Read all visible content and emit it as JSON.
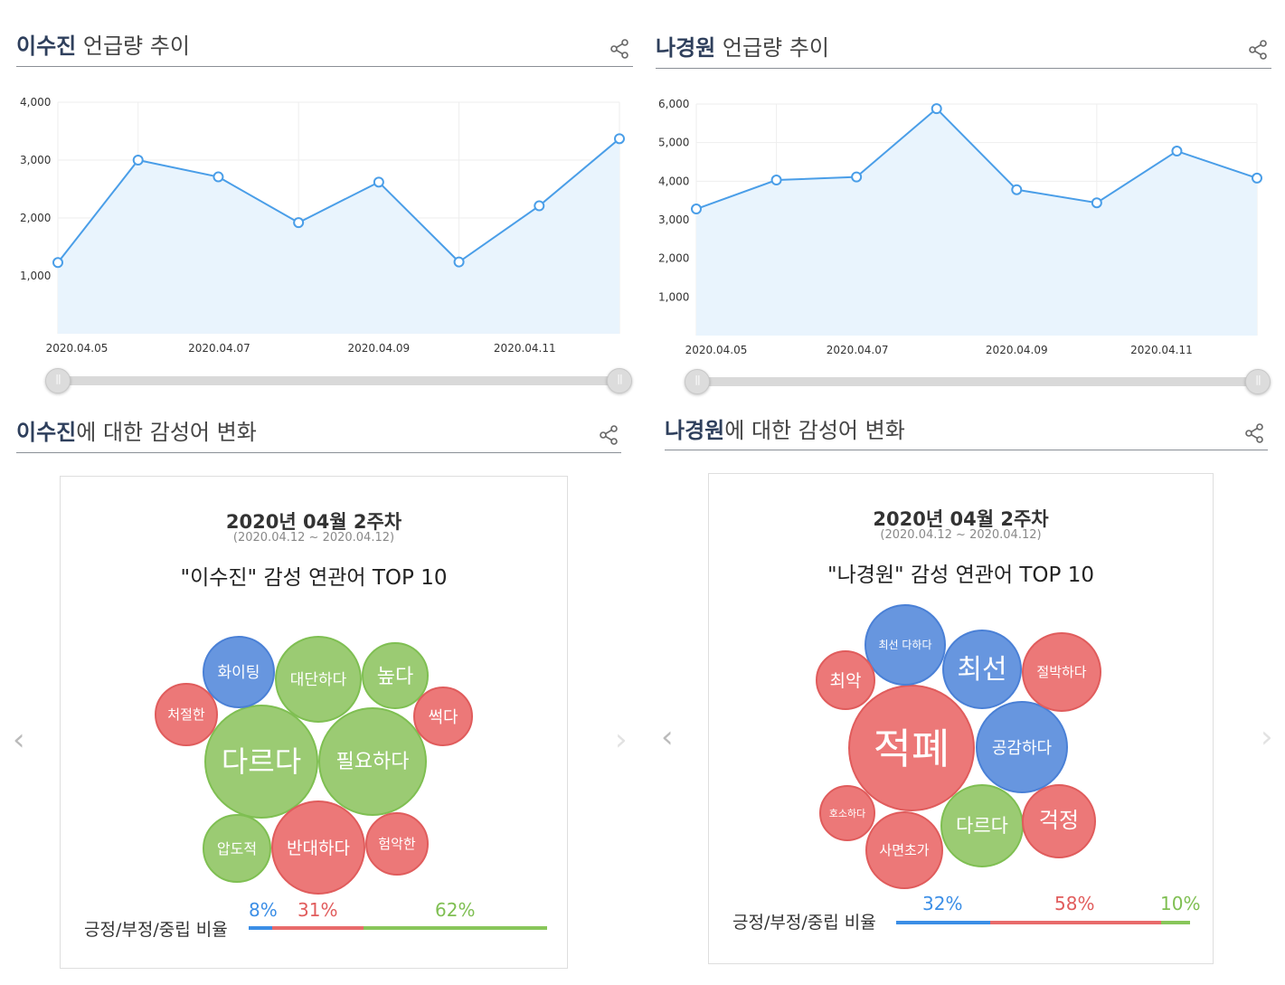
{
  "colors": {
    "line": "#4a9ee8",
    "area": "#e9f4fd",
    "positive": "#4a86d8",
    "negative": "#e86b6b",
    "neutral": "#88c65a",
    "grid": "#eeeeee"
  },
  "left": {
    "trend_title_name": "이수진",
    "trend_title_rest": " 언급량 추이",
    "sentiment_title_name": "이수진",
    "sentiment_title_rest": "에 대한 감성어 변화",
    "card": {
      "week": "2020년 04월 2주차",
      "range": "(2020.04.12 ~ 2020.04.12)",
      "top": "\"이수진\" 감성 연관어 TOP 10",
      "ratio_label": "긍정/부정/중립 비율",
      "positive_pct": "8%",
      "negative_pct": "31%",
      "neutral_pct": "62%"
    }
  },
  "right": {
    "trend_title_name": "나경원",
    "trend_title_rest": " 언급량 추이",
    "sentiment_title_name": "나경원",
    "sentiment_title_rest": "에 대한 감성어 변화",
    "card": {
      "week": "2020년 04월 2주차",
      "range": "(2020.04.12 ~ 2020.04.12)",
      "top": "\"나경원\" 감성 연관어 TOP 10",
      "ratio_label": "긍정/부정/중립 비율",
      "positive_pct": "32%",
      "negative_pct": "58%",
      "neutral_pct": "10%"
    }
  },
  "icons": {
    "share": "share-icon",
    "prev": "chevron-left-icon",
    "next": "chevron-right-icon"
  },
  "chart_data": [
    {
      "type": "area",
      "title": "이수진 언급량 추이",
      "x": [
        "2020.04.05",
        "2020.04.06",
        "2020.04.07",
        "2020.04.08",
        "2020.04.09",
        "2020.04.10",
        "2020.04.11",
        "2020.04.12"
      ],
      "x_tick_labels": [
        "2020.04.05",
        "2020.04.07",
        "2020.04.09",
        "2020.04.11"
      ],
      "values": [
        1230,
        3000,
        2710,
        1920,
        2620,
        1240,
        2210,
        3370
      ],
      "ylim": [
        0,
        4000
      ],
      "y_ticks": [
        1000,
        2000,
        3000,
        4000
      ],
      "y_tick_labels": [
        "1,000",
        "2,000",
        "3,000",
        "4,000"
      ],
      "grid": true
    },
    {
      "type": "area",
      "title": "나경원 언급량 추이",
      "x": [
        "2020.04.05",
        "2020.04.06",
        "2020.04.07",
        "2020.04.08",
        "2020.04.09",
        "2020.04.10",
        "2020.04.11",
        "2020.04.12"
      ],
      "x_tick_labels": [
        "2020.04.05",
        "2020.04.07",
        "2020.04.09",
        "2020.04.11"
      ],
      "values": [
        3280,
        4030,
        4110,
        5880,
        3780,
        3440,
        4780,
        4080
      ],
      "ylim": [
        0,
        6000
      ],
      "y_ticks": [
        1000,
        2000,
        3000,
        4000,
        5000,
        6000
      ],
      "y_tick_labels": [
        "1,000",
        "2,000",
        "3,000",
        "4,000",
        "5,000",
        "6,000"
      ],
      "grid": true
    },
    {
      "type": "bubble",
      "title": "\"이수진\" 감성 연관어 TOP 10",
      "words": [
        {
          "text": "다르다",
          "sentiment": "neutral"
        },
        {
          "text": "필요하다",
          "sentiment": "neutral"
        },
        {
          "text": "반대하다",
          "sentiment": "negative"
        },
        {
          "text": "대단하다",
          "sentiment": "neutral"
        },
        {
          "text": "화이팅",
          "sentiment": "positive"
        },
        {
          "text": "높다",
          "sentiment": "neutral"
        },
        {
          "text": "압도적",
          "sentiment": "neutral"
        },
        {
          "text": "처절한",
          "sentiment": "negative"
        },
        {
          "text": "썩다",
          "sentiment": "negative"
        },
        {
          "text": "험악한",
          "sentiment": "negative"
        }
      ],
      "ratio": {
        "positive": 8,
        "negative": 31,
        "neutral": 62
      }
    },
    {
      "type": "bubble",
      "title": "\"나경원\" 감성 연관어 TOP 10",
      "words": [
        {
          "text": "적폐",
          "sentiment": "negative"
        },
        {
          "text": "공감하다",
          "sentiment": "positive"
        },
        {
          "text": "최선",
          "sentiment": "positive"
        },
        {
          "text": "최선 다하다",
          "sentiment": "positive"
        },
        {
          "text": "절박하다",
          "sentiment": "negative"
        },
        {
          "text": "다르다",
          "sentiment": "neutral"
        },
        {
          "text": "사면초가",
          "sentiment": "negative"
        },
        {
          "text": "걱정",
          "sentiment": "negative"
        },
        {
          "text": "최악",
          "sentiment": "negative"
        },
        {
          "text": "호소하다",
          "sentiment": "negative"
        }
      ],
      "ratio": {
        "positive": 32,
        "negative": 58,
        "neutral": 10
      }
    }
  ]
}
